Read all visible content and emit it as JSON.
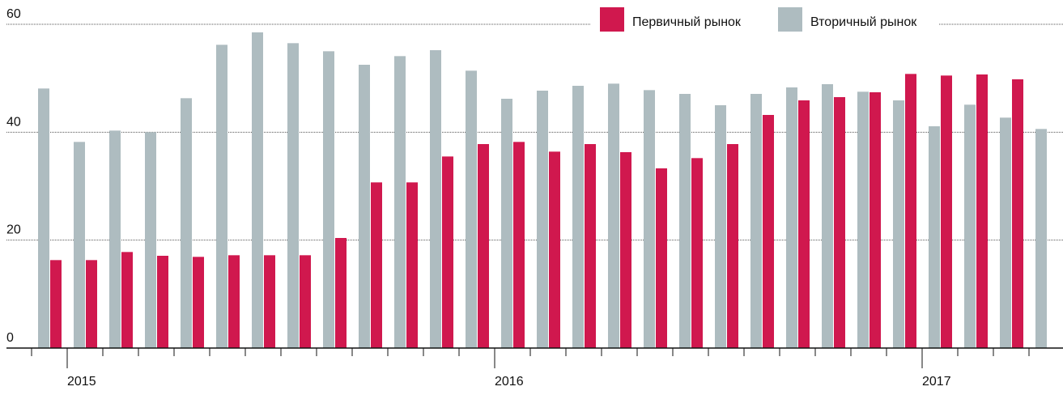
{
  "chart_data": {
    "type": "bar",
    "categories": [
      null,
      "2015",
      null,
      null,
      null,
      null,
      null,
      null,
      null,
      null,
      null,
      null,
      null,
      "2016",
      null,
      null,
      null,
      null,
      null,
      null,
      null,
      null,
      null,
      null,
      null,
      "2017",
      null,
      null,
      null
    ],
    "series": [
      {
        "name": "Вторичный рынок",
        "color": "#aebcc0",
        "values": [
          48.1,
          38.2,
          40.3,
          40,
          46.3,
          56.2,
          58.5,
          56.5,
          55,
          52.5,
          54.1,
          55.2,
          51.4,
          46.2,
          47.7,
          48.6,
          49,
          47.8,
          47.1,
          45,
          47.1,
          48.3,
          48.9,
          47.5,
          45.9,
          41.1,
          45.1,
          42.7,
          40.6
        ]
      },
      {
        "name": "Первичный рынок",
        "color": "#d0184e",
        "values": [
          16.3,
          16.3,
          17.8,
          17.1,
          16.9,
          17.2,
          17.2,
          17.2,
          20.4,
          30.7,
          30.7,
          35.5,
          37.8,
          38.2,
          36.4,
          37.8,
          36.3,
          33.3,
          35.2,
          37.8,
          43.2,
          45.9,
          46.5,
          47.4,
          50.8,
          50.5,
          50.7,
          49.8,
          null
        ]
      }
    ],
    "ylim": [
      0,
      60
    ],
    "yticks": [
      0,
      20,
      40,
      60
    ],
    "grid": true,
    "legend": "top-right"
  }
}
